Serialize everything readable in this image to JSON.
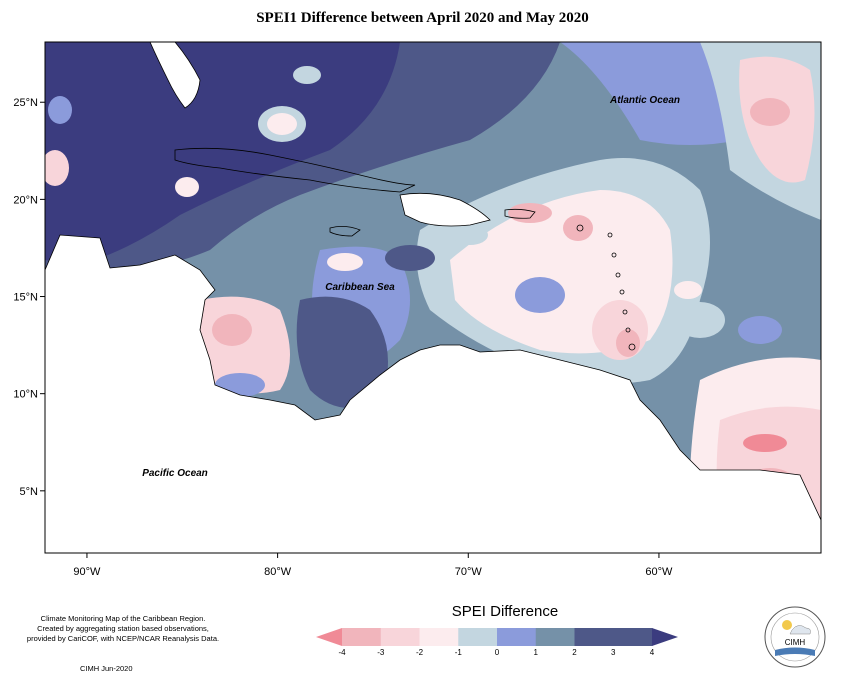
{
  "title": "SPEI1 Difference between April 2020 and May 2020",
  "map": {
    "lon_ticks": [
      {
        "value": -90,
        "label": "90°W"
      },
      {
        "value": -80,
        "label": "80°W"
      },
      {
        "value": -70,
        "label": "70°W"
      },
      {
        "value": -60,
        "label": "60°W"
      }
    ],
    "lat_ticks": [
      {
        "value": 25,
        "label": "25°N"
      },
      {
        "value": 20,
        "label": "20°N"
      },
      {
        "value": 15,
        "label": "15°N"
      },
      {
        "value": 10,
        "label": "10°N"
      },
      {
        "value": 5,
        "label": "5°N"
      }
    ],
    "extent": {
      "lon_min": -92.2,
      "lon_max": -51.5,
      "lat_min": 1.8,
      "lat_max": 28.1
    },
    "labels": {
      "atlantic": "Atlantic Ocean",
      "caribbean": "Caribbean Sea",
      "pacific": "Pacific Ocean"
    }
  },
  "legend": {
    "title": "SPEI Difference",
    "ticks": [
      "-4",
      "-3",
      "-2",
      "-1",
      "0",
      "1",
      "2",
      "3",
      "4"
    ],
    "colors": [
      "#f08a96",
      "#f1b5bc",
      "#f8d5da",
      "#fcecee",
      "#c3d6e0",
      "#8b9bdb",
      "#7591a8",
      "#4e5888",
      "#3b3c7f"
    ]
  },
  "credits": {
    "line1": "Climate Monitoring Map of the Caribbean Region.",
    "line2": "Created by aggregating station based observations,",
    "line3": "provided by CariCOF, with NCEP/NCAR Reanalysis Data.",
    "stamp": "CIMH  Jun-2020"
  },
  "logo": {
    "text": "CIMH"
  },
  "colors": {
    "strong_positive": "#3b3c7f",
    "positive": "#4e5888",
    "mild_positive": "#7591a8",
    "slight_positive": "#8b9bdb",
    "neutral": "#c3d6e0",
    "slight_negative": "#fcecee",
    "mild_negative": "#f8d5da",
    "negative": "#f1b5bc",
    "strong_negative": "#f08a96"
  }
}
